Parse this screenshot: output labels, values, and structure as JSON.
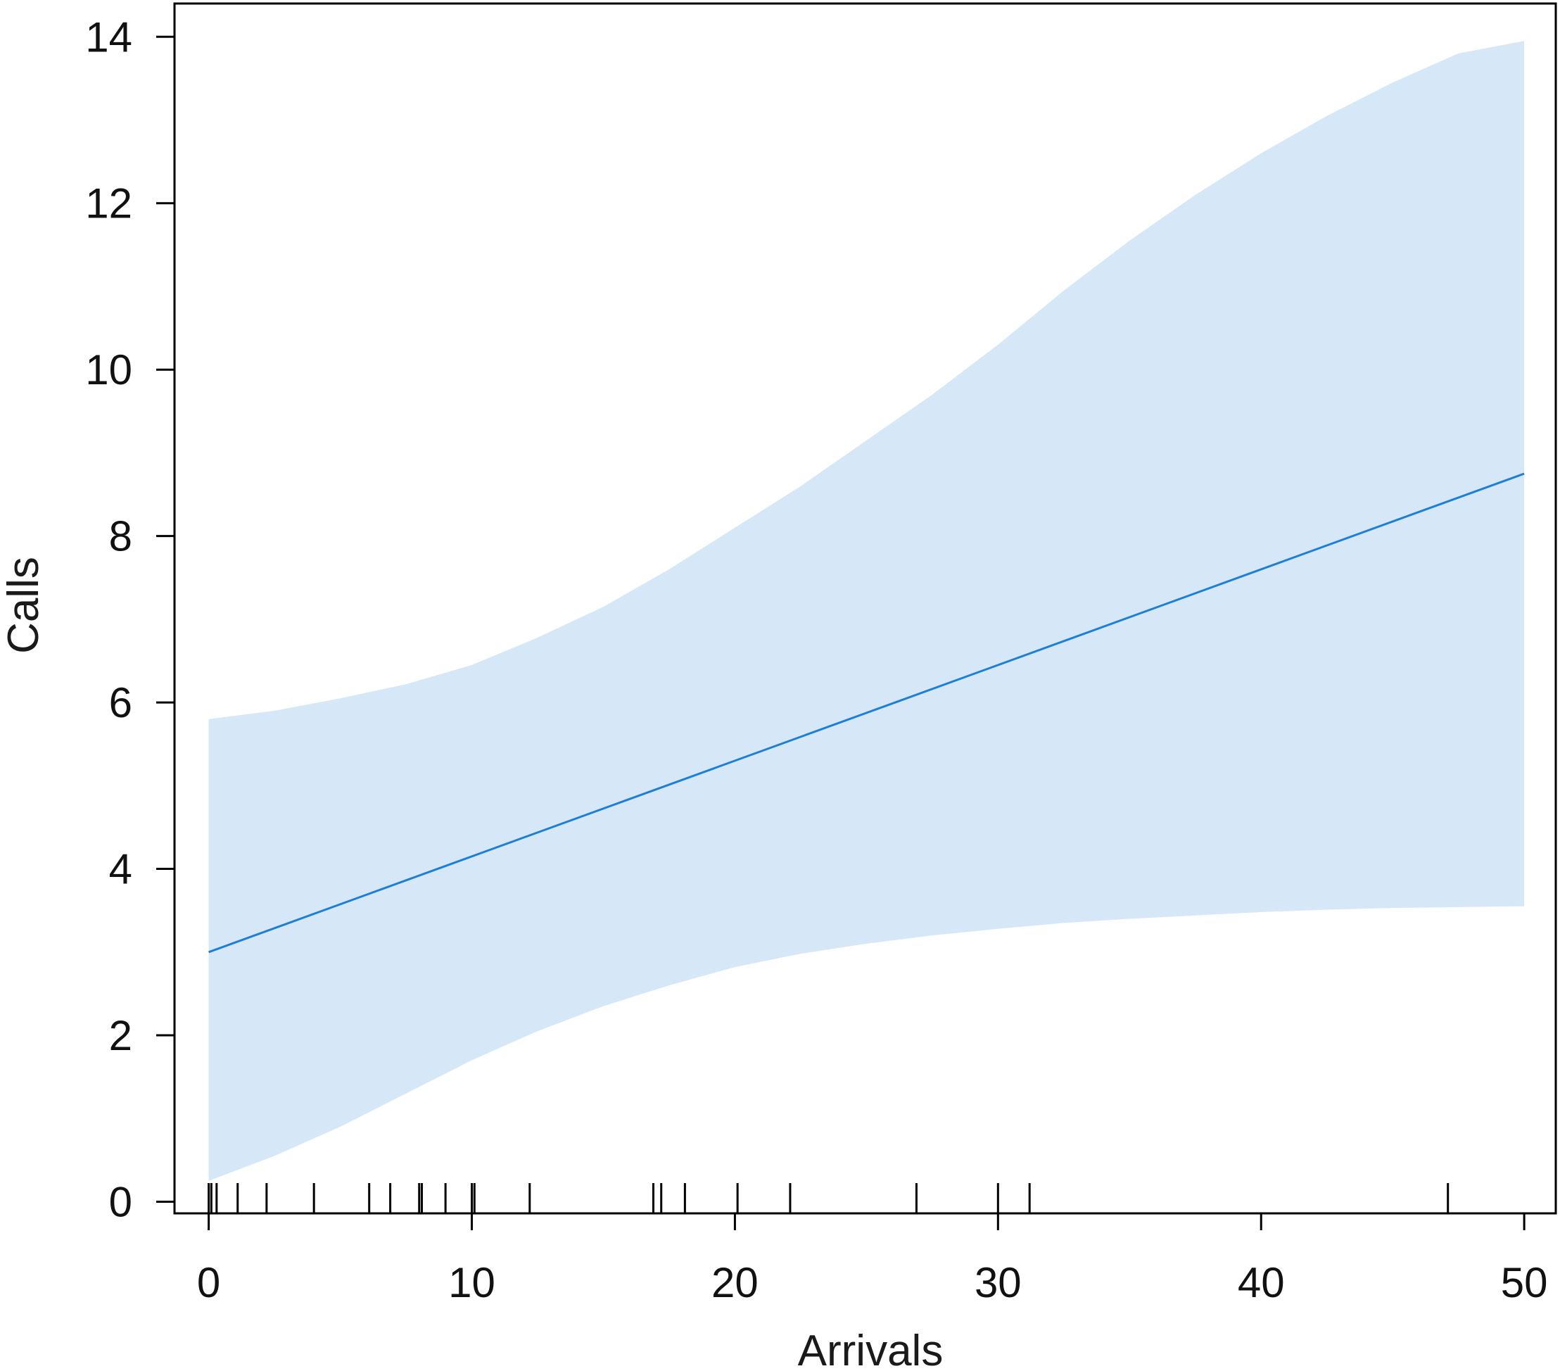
{
  "chart_data": {
    "type": "line",
    "xlabel": "Arrivals",
    "ylabel": "Calls",
    "xlim": [
      -1.3,
      51.2
    ],
    "ylim": [
      -0.14,
      14.4
    ],
    "xticks": [
      0,
      10,
      20,
      30,
      40,
      50
    ],
    "yticks": [
      0,
      2,
      4,
      6,
      8,
      10,
      12,
      14
    ],
    "grid": false,
    "legend": "none",
    "fit": {
      "x": [
        0,
        50
      ],
      "y": [
        3.0,
        8.75
      ]
    },
    "confidence_band": {
      "x": [
        0,
        2.5,
        5,
        7.5,
        10,
        12.5,
        15,
        17.5,
        20,
        22.5,
        25,
        27.5,
        30,
        32.5,
        35,
        37.5,
        40,
        42.5,
        45,
        47.5,
        50
      ],
      "lower": [
        0.25,
        0.55,
        0.9,
        1.3,
        1.7,
        2.05,
        2.35,
        2.6,
        2.82,
        2.98,
        3.1,
        3.2,
        3.28,
        3.35,
        3.4,
        3.44,
        3.48,
        3.51,
        3.53,
        3.54,
        3.55
      ],
      "upper": [
        5.8,
        5.9,
        6.05,
        6.22,
        6.45,
        6.78,
        7.15,
        7.6,
        8.1,
        8.6,
        9.15,
        9.7,
        10.3,
        10.95,
        11.55,
        12.1,
        12.6,
        13.05,
        13.45,
        13.8,
        13.95
      ]
    },
    "rug": [
      0,
      0.1,
      0.3,
      1.1,
      2.2,
      4.0,
      6.1,
      6.9,
      8.0,
      8.1,
      9.0,
      10.0,
      10.1,
      12.2,
      16.9,
      17.2,
      18.1,
      20.1,
      22.1,
      26.9,
      30.0,
      31.2,
      47.1
    ]
  },
  "colors": {
    "line": "#1e7fd8",
    "band": "#d6e8f8",
    "axis": "#000000"
  }
}
